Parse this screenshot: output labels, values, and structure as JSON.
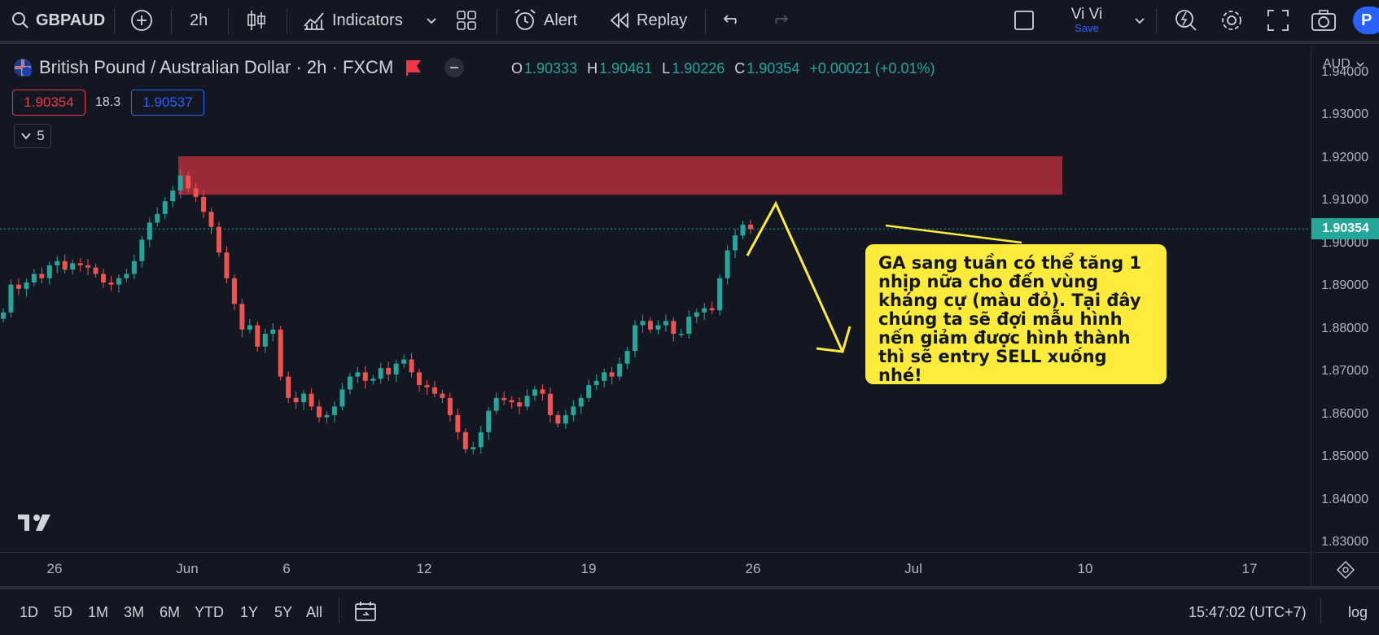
{
  "toolbar": {
    "symbol": "GBPAUD",
    "interval": "2h",
    "indicators_label": "Indicators",
    "alert_label": "Alert",
    "replay_label": "Replay",
    "layout_name": "Vi Vi",
    "save_label": "Save",
    "publish_label": "P"
  },
  "legend": {
    "title": "British Pound / Australian Dollar · 2h · FXCM",
    "o_label": "O",
    "o_value": "1.90333",
    "h_label": "H",
    "h_value": "1.90461",
    "l_label": "L",
    "l_value": "1.90226",
    "c_label": "C",
    "c_value": "1.90354",
    "change": "+0.00021 (+0.01%)",
    "bid": "1.90354",
    "spread": "18.3",
    "ask": "1.90537",
    "collapsed_count": "5"
  },
  "price_axis": {
    "currency": "AUD",
    "ticks": [
      "1.94000",
      "1.93000",
      "1.92000",
      "1.91000",
      "1.90000",
      "1.89000",
      "1.88000",
      "1.87000",
      "1.86000",
      "1.85000",
      "1.84000",
      "1.83000"
    ],
    "last_price": "1.90354"
  },
  "time_axis": {
    "ticks": [
      "26",
      "Jun",
      "6",
      "12",
      "19",
      "26",
      "Jul",
      "10",
      "17"
    ]
  },
  "annotation": {
    "text": "GA sang tuần có thể tăng 1 nhịp nữa cho đến vùng kháng cự (màu đỏ). Tại đây chúng ta sẽ đợi mẫu hình nến giảm được hình thành thì sẽ entry SELL xuống nhé!"
  },
  "bottom": {
    "ranges": [
      "1D",
      "5D",
      "1M",
      "3M",
      "6M",
      "YTD",
      "1Y",
      "5Y",
      "All"
    ],
    "clock": "15:47:02 (UTC+7)",
    "log_label": "log"
  },
  "colors": {
    "up": "#26a69a",
    "down": "#ef5350",
    "zone": "#9b2a38",
    "callout": "#ffeb3b",
    "background": "#131722"
  },
  "chart_data": {
    "type": "candlestick",
    "symbol": "GBPAUD",
    "ylim": [
      1.828,
      1.946
    ],
    "resistance_zone": [
      1.9115,
      1.9205
    ],
    "last_price": 1.90354,
    "closes": [
      1.884,
      1.8905,
      1.8895,
      1.891,
      1.893,
      1.892,
      1.895,
      1.896,
      1.894,
      1.8955,
      1.895,
      1.8945,
      1.893,
      1.891,
      1.8905,
      1.892,
      1.893,
      1.896,
      1.901,
      1.905,
      1.907,
      1.91,
      1.9125,
      1.916,
      1.913,
      1.911,
      1.9075,
      1.904,
      1.898,
      1.892,
      1.886,
      1.88,
      1.881,
      1.876,
      1.879,
      1.88,
      1.869,
      1.864,
      1.863,
      1.865,
      1.862,
      1.8595,
      1.86,
      1.862,
      1.866,
      1.869,
      1.87,
      1.868,
      1.8685,
      1.871,
      1.8695,
      1.872,
      1.873,
      1.87,
      1.867,
      1.8665,
      1.865,
      1.864,
      1.86,
      1.856,
      1.852,
      1.8525,
      1.856,
      1.861,
      1.864,
      1.8635,
      1.863,
      1.862,
      1.8645,
      1.866,
      1.865,
      1.86,
      1.858,
      1.86,
      1.862,
      1.864,
      1.867,
      1.868,
      1.87,
      1.869,
      1.872,
      1.875,
      1.881,
      1.882,
      1.88,
      1.881,
      1.882,
      1.879,
      1.879,
      1.883,
      1.884,
      1.885,
      1.8845,
      1.892,
      1.8985,
      1.902,
      1.9045,
      1.9035
    ]
  }
}
